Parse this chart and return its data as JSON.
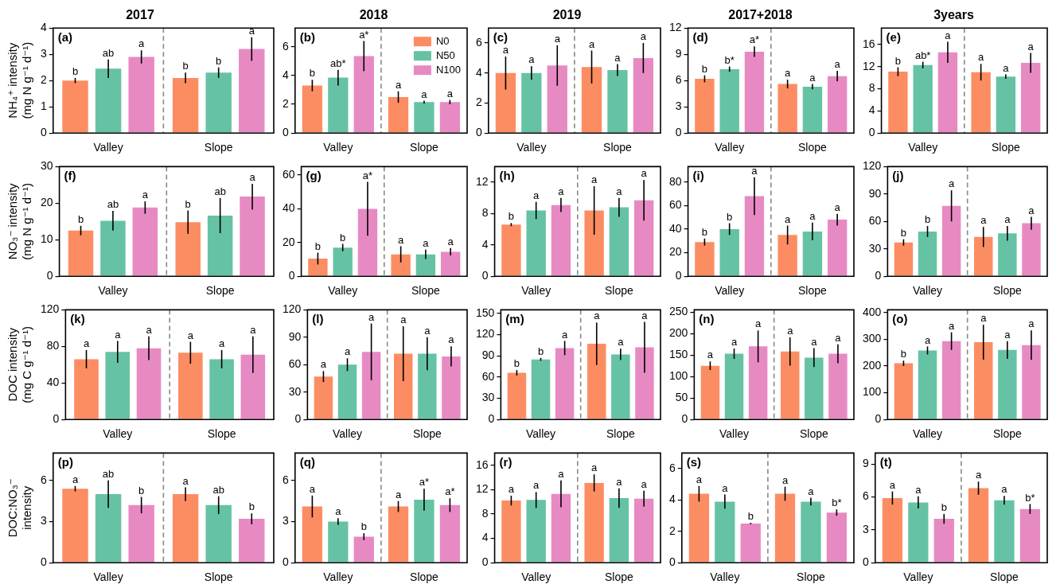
{
  "chart_data": [
    {
      "type": "bar",
      "title": "2017",
      "ylabel": "NH₄⁺ intensity\n(mg N g⁻¹ d⁻¹)",
      "annotations": [
        "(a)"
      ],
      "categories": [
        "Valley",
        "Slope"
      ],
      "ylim": [
        0,
        4
      ],
      "yticks": [
        0,
        1,
        2,
        3,
        4
      ],
      "series": [
        {
          "color": "#fc8d62",
          "values": [
            2.0,
            2.1
          ],
          "errors": [
            0.1,
            0.2
          ],
          "value_labels": [
            "b",
            "b"
          ]
        },
        {
          "color": "#66c2a5",
          "values": [
            2.45,
            2.3
          ],
          "errors": [
            0.35,
            0.2
          ],
          "value_labels": [
            "ab",
            "b"
          ]
        },
        {
          "color": "#e78ac3",
          "values": [
            2.9,
            3.2
          ],
          "errors": [
            0.25,
            0.45
          ],
          "value_labels": [
            "a",
            "a"
          ]
        }
      ]
    },
    {
      "type": "bar",
      "title": "2018",
      "annotations": [
        "(b)"
      ],
      "legend": "top right",
      "categories": [
        "Valley",
        "Slope"
      ],
      "ylim": [
        0,
        7.3
      ],
      "yticks": [
        0,
        2,
        4,
        6
      ],
      "series": [
        {
          "name": "N0",
          "color": "#fc8d62",
          "values": [
            3.3,
            2.5
          ],
          "errors": [
            0.4,
            0.4
          ],
          "value_labels": [
            "b",
            "a"
          ]
        },
        {
          "name": "N50",
          "color": "#66c2a5",
          "values": [
            3.85,
            2.15
          ],
          "errors": [
            0.55,
            0.1
          ],
          "value_labels": [
            "ab*",
            "a"
          ]
        },
        {
          "name": "N100",
          "color": "#e78ac3",
          "values": [
            5.35,
            2.15
          ],
          "errors": [
            1.05,
            0.15
          ],
          "value_labels": [
            "a*",
            "a"
          ]
        }
      ]
    },
    {
      "type": "bar",
      "title": "2019",
      "annotations": [
        "(c)"
      ],
      "categories": [
        "Valley",
        "Slope"
      ],
      "ylim": [
        0,
        7
      ],
      "yticks": [
        0,
        2,
        4,
        6
      ],
      "series": [
        {
          "color": "#fc8d62",
          "values": [
            4.0,
            4.4
          ],
          "errors": [
            1.1,
            1.1
          ],
          "value_labels": [
            "a",
            "a"
          ]
        },
        {
          "color": "#66c2a5",
          "values": [
            4.0,
            4.2
          ],
          "errors": [
            0.45,
            0.4
          ],
          "value_labels": [
            "a",
            "a"
          ]
        },
        {
          "color": "#e78ac3",
          "values": [
            4.5,
            5.0
          ],
          "errors": [
            1.35,
            1.0
          ],
          "value_labels": [
            "a",
            "a"
          ]
        }
      ]
    },
    {
      "type": "bar",
      "title": "2017+2018",
      "annotations": [
        "(d)"
      ],
      "categories": [
        "Valley",
        "Slope"
      ],
      "ylim": [
        0,
        12
      ],
      "yticks": [
        0,
        3,
        6,
        9,
        12
      ],
      "series": [
        {
          "color": "#fc8d62",
          "values": [
            6.2,
            5.6
          ],
          "errors": [
            0.4,
            0.5
          ],
          "value_labels": [
            "b",
            "a"
          ]
        },
        {
          "color": "#66c2a5",
          "values": [
            7.3,
            5.3
          ],
          "errors": [
            0.3,
            0.3
          ],
          "value_labels": [
            "b*",
            "a"
          ]
        },
        {
          "color": "#e78ac3",
          "values": [
            9.3,
            6.5
          ],
          "errors": [
            0.6,
            0.6
          ],
          "value_labels": [
            "a*",
            "a"
          ]
        }
      ]
    },
    {
      "type": "bar",
      "title": "3years",
      "annotations": [
        "(e)"
      ],
      "categories": [
        "Valley",
        "Slope"
      ],
      "ylim": [
        0,
        19
      ],
      "yticks": [
        0,
        4,
        8,
        12,
        16
      ],
      "series": [
        {
          "color": "#fc8d62",
          "values": [
            11.1,
            11.0
          ],
          "errors": [
            0.8,
            1.5
          ],
          "value_labels": [
            "b",
            "a"
          ]
        },
        {
          "color": "#66c2a5",
          "values": [
            12.3,
            10.2
          ],
          "errors": [
            0.6,
            0.4
          ],
          "value_labels": [
            "ab*",
            "a"
          ]
        },
        {
          "color": "#e78ac3",
          "values": [
            14.6,
            12.7
          ],
          "errors": [
            1.9,
            1.8
          ],
          "value_labels": [
            "a",
            "a"
          ]
        }
      ]
    },
    {
      "type": "bar",
      "ylabel": "NO₃⁻ intensity\n(mg N g⁻¹ d⁻¹)",
      "annotations": [
        "(f)"
      ],
      "categories": [
        "Valley",
        "Slope"
      ],
      "ylim": [
        0,
        30
      ],
      "yticks": [
        0,
        10,
        20,
        30
      ],
      "series": [
        {
          "color": "#fc8d62",
          "values": [
            12.5,
            14.8
          ],
          "errors": [
            1.3,
            3.2
          ],
          "value_labels": [
            "b",
            "b"
          ]
        },
        {
          "color": "#66c2a5",
          "values": [
            15.2,
            16.6
          ],
          "errors": [
            2.7,
            4.8
          ],
          "value_labels": [
            "ab",
            "ab"
          ]
        },
        {
          "color": "#e78ac3",
          "values": [
            18.8,
            21.8
          ],
          "errors": [
            1.7,
            3.5
          ],
          "value_labels": [
            "a",
            "a"
          ]
        }
      ]
    },
    {
      "type": "bar",
      "annotations": [
        "(g)"
      ],
      "categories": [
        "Valley",
        "Slope"
      ],
      "ylim": [
        0,
        65
      ],
      "yticks": [
        0,
        20,
        40,
        60
      ],
      "series": [
        {
          "color": "#fc8d62",
          "values": [
            10.5,
            13
          ],
          "errors": [
            3.5,
            4.8
          ],
          "value_labels": [
            "b",
            "a"
          ]
        },
        {
          "color": "#66c2a5",
          "values": [
            17,
            13
          ],
          "errors": [
            2.2,
            2.8
          ],
          "value_labels": [
            "b",
            "a"
          ]
        },
        {
          "color": "#e78ac3",
          "values": [
            40,
            14.5
          ],
          "errors": [
            16,
            2.2
          ],
          "value_labels": [
            "a*",
            "a"
          ]
        }
      ]
    },
    {
      "type": "bar",
      "annotations": [
        "(h)"
      ],
      "categories": [
        "Valley",
        "Slope"
      ],
      "ylim": [
        0,
        14
      ],
      "yticks": [
        0,
        4,
        8,
        12
      ],
      "series": [
        {
          "color": "#fc8d62",
          "values": [
            6.6,
            8.4
          ],
          "errors": [
            0.2,
            3.1
          ],
          "value_labels": [
            "b",
            "a"
          ]
        },
        {
          "color": "#66c2a5",
          "values": [
            8.4,
            8.8
          ],
          "errors": [
            1.1,
            1.2
          ],
          "value_labels": [
            "a",
            "a"
          ]
        },
        {
          "color": "#e78ac3",
          "values": [
            9.1,
            9.7
          ],
          "errors": [
            0.9,
            2.6
          ],
          "value_labels": [
            "a",
            "a"
          ]
        }
      ]
    },
    {
      "type": "bar",
      "annotations": [
        "(i)"
      ],
      "categories": [
        "Valley",
        "Slope"
      ],
      "ylim": [
        0,
        93
      ],
      "yticks": [
        0,
        20,
        40,
        60,
        80
      ],
      "series": [
        {
          "color": "#fc8d62",
          "values": [
            29,
            35
          ],
          "errors": [
            3,
            8
          ],
          "value_labels": [
            "b",
            "a"
          ]
        },
        {
          "color": "#66c2a5",
          "values": [
            40,
            38
          ],
          "errors": [
            5,
            7.5
          ],
          "value_labels": [
            "b",
            "a"
          ]
        },
        {
          "color": "#e78ac3",
          "values": [
            68,
            48
          ],
          "errors": [
            16,
            5
          ],
          "value_labels": [
            "a",
            "a"
          ]
        }
      ]
    },
    {
      "type": "bar",
      "annotations": [
        "(j)"
      ],
      "categories": [
        "Valley",
        "Slope"
      ],
      "ylim": [
        0,
        120
      ],
      "yticks": [
        0,
        30,
        60,
        90,
        120
      ],
      "series": [
        {
          "color": "#fc8d62",
          "values": [
            37,
            43
          ],
          "errors": [
            3.5,
            11
          ],
          "value_labels": [
            "b",
            "a"
          ]
        },
        {
          "color": "#66c2a5",
          "values": [
            49,
            47
          ],
          "errors": [
            6,
            8
          ],
          "value_labels": [
            "b",
            "a"
          ]
        },
        {
          "color": "#e78ac3",
          "values": [
            77,
            58
          ],
          "errors": [
            17,
            7
          ],
          "value_labels": [
            "a",
            "a"
          ]
        }
      ]
    },
    {
      "type": "bar",
      "ylabel": "DOC intensity\n(mg C g⁻¹ d⁻¹)",
      "annotations": [
        "(k)"
      ],
      "categories": [
        "Valley",
        "Slope"
      ],
      "ylim": [
        0,
        120
      ],
      "yticks": [
        0,
        40,
        80,
        120
      ],
      "series": [
        {
          "color": "#fc8d62",
          "values": [
            66,
            73
          ],
          "errors": [
            10,
            12
          ],
          "value_labels": [
            "a",
            "a"
          ]
        },
        {
          "color": "#66c2a5",
          "values": [
            74,
            66
          ],
          "errors": [
            12,
            10
          ],
          "value_labels": [
            "a",
            "a"
          ]
        },
        {
          "color": "#e78ac3",
          "values": [
            78,
            71
          ],
          "errors": [
            13,
            20
          ],
          "value_labels": [
            "a",
            "a"
          ]
        }
      ]
    },
    {
      "type": "bar",
      "annotations": [
        "(l)"
      ],
      "categories": [
        "Valley",
        "Slope"
      ],
      "ylim": [
        0,
        120
      ],
      "yticks": [
        0,
        30,
        60,
        90,
        120
      ],
      "series": [
        {
          "color": "#fc8d62",
          "values": [
            47,
            72
          ],
          "errors": [
            6,
            30
          ],
          "value_labels": [
            "a",
            "a"
          ]
        },
        {
          "color": "#66c2a5",
          "values": [
            60,
            72
          ],
          "errors": [
            7,
            18
          ],
          "value_labels": [
            "a",
            "a"
          ]
        },
        {
          "color": "#e78ac3",
          "values": [
            74,
            69
          ],
          "errors": [
            31,
            11
          ],
          "value_labels": [
            "a",
            "a"
          ]
        }
      ]
    },
    {
      "type": "bar",
      "annotations": [
        "(m)"
      ],
      "categories": [
        "Valley",
        "Slope"
      ],
      "ylim": [
        0,
        155
      ],
      "yticks": [
        0,
        30,
        60,
        90,
        120,
        150
      ],
      "series": [
        {
          "color": "#fc8d62",
          "values": [
            66,
            107
          ],
          "errors": [
            4,
            30
          ],
          "value_labels": [
            "b",
            "a"
          ]
        },
        {
          "color": "#66c2a5",
          "values": [
            85,
            92
          ],
          "errors": [
            2,
            8
          ],
          "value_labels": [
            "b",
            "a"
          ]
        },
        {
          "color": "#e78ac3",
          "values": [
            101,
            102
          ],
          "errors": [
            10,
            36
          ],
          "value_labels": [
            "a",
            "a"
          ]
        }
      ]
    },
    {
      "type": "bar",
      "annotations": [
        "(n)"
      ],
      "categories": [
        "Valley",
        "Slope"
      ],
      "ylim": [
        0,
        255
      ],
      "yticks": [
        0,
        50,
        100,
        150,
        200,
        250
      ],
      "series": [
        {
          "color": "#fc8d62",
          "values": [
            125,
            158
          ],
          "errors": [
            10,
            33
          ],
          "value_labels": [
            "a",
            "a"
          ]
        },
        {
          "color": "#66c2a5",
          "values": [
            153,
            144
          ],
          "errors": [
            12,
            22
          ],
          "value_labels": [
            "a",
            "a"
          ]
        },
        {
          "color": "#e78ac3",
          "values": [
            170,
            153
          ],
          "errors": [
            37,
            22
          ],
          "value_labels": [
            "a",
            "a"
          ]
        }
      ]
    },
    {
      "type": "bar",
      "annotations": [
        "(o)"
      ],
      "categories": [
        "Valley",
        "Slope"
      ],
      "ylim": [
        0,
        410
      ],
      "yticks": [
        0,
        100,
        200,
        300,
        400
      ],
      "series": [
        {
          "color": "#fc8d62",
          "values": [
            210,
            289
          ],
          "errors": [
            10,
            65
          ],
          "value_labels": [
            "b",
            "a"
          ]
        },
        {
          "color": "#66c2a5",
          "values": [
            258,
            260
          ],
          "errors": [
            15,
            33
          ],
          "value_labels": [
            "a",
            "a"
          ]
        },
        {
          "color": "#e78ac3",
          "values": [
            293,
            278
          ],
          "errors": [
            33,
            55
          ],
          "value_labels": [
            "a",
            "a"
          ]
        }
      ]
    },
    {
      "type": "bar",
      "ylabel": "DOC:NO₃⁻\nintensity",
      "annotations": [
        "(p)"
      ],
      "categories": [
        "Valley",
        "Slope"
      ],
      "ylim": [
        0,
        8
      ],
      "yticks": [
        0,
        3,
        6
      ],
      "series": [
        {
          "color": "#fc8d62",
          "values": [
            5.4,
            5.0
          ],
          "errors": [
            0.2,
            0.5
          ],
          "value_labels": [
            "a",
            "a"
          ]
        },
        {
          "color": "#66c2a5",
          "values": [
            5.0,
            4.2
          ],
          "errors": [
            1.0,
            0.65
          ],
          "value_labels": [
            "ab",
            "ab"
          ]
        },
        {
          "color": "#e78ac3",
          "values": [
            4.2,
            3.2
          ],
          "errors": [
            0.6,
            0.4
          ],
          "value_labels": [
            "b",
            "b"
          ]
        }
      ]
    },
    {
      "type": "bar",
      "annotations": [
        "(q)"
      ],
      "categories": [
        "Valley",
        "Slope"
      ],
      "ylim": [
        0,
        8
      ],
      "yticks": [
        0,
        3,
        6
      ],
      "series": [
        {
          "color": "#fc8d62",
          "values": [
            4.1,
            4.1
          ],
          "errors": [
            0.8,
            0.4
          ],
          "value_labels": [
            "a",
            "a"
          ]
        },
        {
          "color": "#66c2a5",
          "values": [
            3.0,
            4.6
          ],
          "errors": [
            0.25,
            0.8
          ],
          "value_labels": [
            "a",
            "a*"
          ]
        },
        {
          "color": "#e78ac3",
          "values": [
            1.9,
            4.2
          ],
          "errors": [
            0.25,
            0.5
          ],
          "value_labels": [
            "b",
            "a*"
          ]
        }
      ]
    },
    {
      "type": "bar",
      "annotations": [
        "(r)"
      ],
      "categories": [
        "Valley",
        "Slope"
      ],
      "ylim": [
        0,
        18
      ],
      "yticks": [
        0,
        4,
        8,
        12,
        16
      ],
      "series": [
        {
          "color": "#fc8d62",
          "values": [
            10.2,
            13.1
          ],
          "errors": [
            0.8,
            1.4
          ],
          "value_labels": [
            "a",
            "a"
          ]
        },
        {
          "color": "#66c2a5",
          "values": [
            10.3,
            10.6
          ],
          "errors": [
            1.3,
            1.6
          ],
          "value_labels": [
            "a",
            "a"
          ]
        },
        {
          "color": "#e78ac3",
          "values": [
            11.3,
            10.5
          ],
          "errors": [
            2.2,
            1.3
          ],
          "value_labels": [
            "a",
            "a"
          ]
        }
      ]
    },
    {
      "type": "bar",
      "annotations": [
        "(s)"
      ],
      "categories": [
        "Valley",
        "Slope"
      ],
      "ylim": [
        0,
        7
      ],
      "yticks": [
        0,
        2,
        4,
        6
      ],
      "series": [
        {
          "color": "#fc8d62",
          "values": [
            4.4,
            4.4
          ],
          "errors": [
            0.5,
            0.45
          ],
          "value_labels": [
            "a",
            "a"
          ]
        },
        {
          "color": "#66c2a5",
          "values": [
            3.9,
            3.9
          ],
          "errors": [
            0.45,
            0.25
          ],
          "value_labels": [
            "a",
            "a"
          ]
        },
        {
          "color": "#e78ac3",
          "values": [
            2.5,
            3.2
          ],
          "errors": [
            0.05,
            0.2
          ],
          "value_labels": [
            "b",
            "b*"
          ]
        }
      ]
    },
    {
      "type": "bar",
      "annotations": [
        "(t)"
      ],
      "categories": [
        "Valley",
        "Slope"
      ],
      "ylim": [
        0,
        10
      ],
      "yticks": [
        0,
        3,
        6,
        9
      ],
      "series": [
        {
          "color": "#fc8d62",
          "values": [
            5.9,
            6.8
          ],
          "errors": [
            0.6,
            0.6
          ],
          "value_labels": [
            "a",
            "a"
          ]
        },
        {
          "color": "#66c2a5",
          "values": [
            5.5,
            5.7
          ],
          "errors": [
            0.55,
            0.4
          ],
          "value_labels": [
            "a",
            "a"
          ]
        },
        {
          "color": "#e78ac3",
          "values": [
            4.0,
            4.9
          ],
          "errors": [
            0.45,
            0.45
          ],
          "value_labels": [
            "b",
            "b*"
          ]
        }
      ]
    }
  ]
}
